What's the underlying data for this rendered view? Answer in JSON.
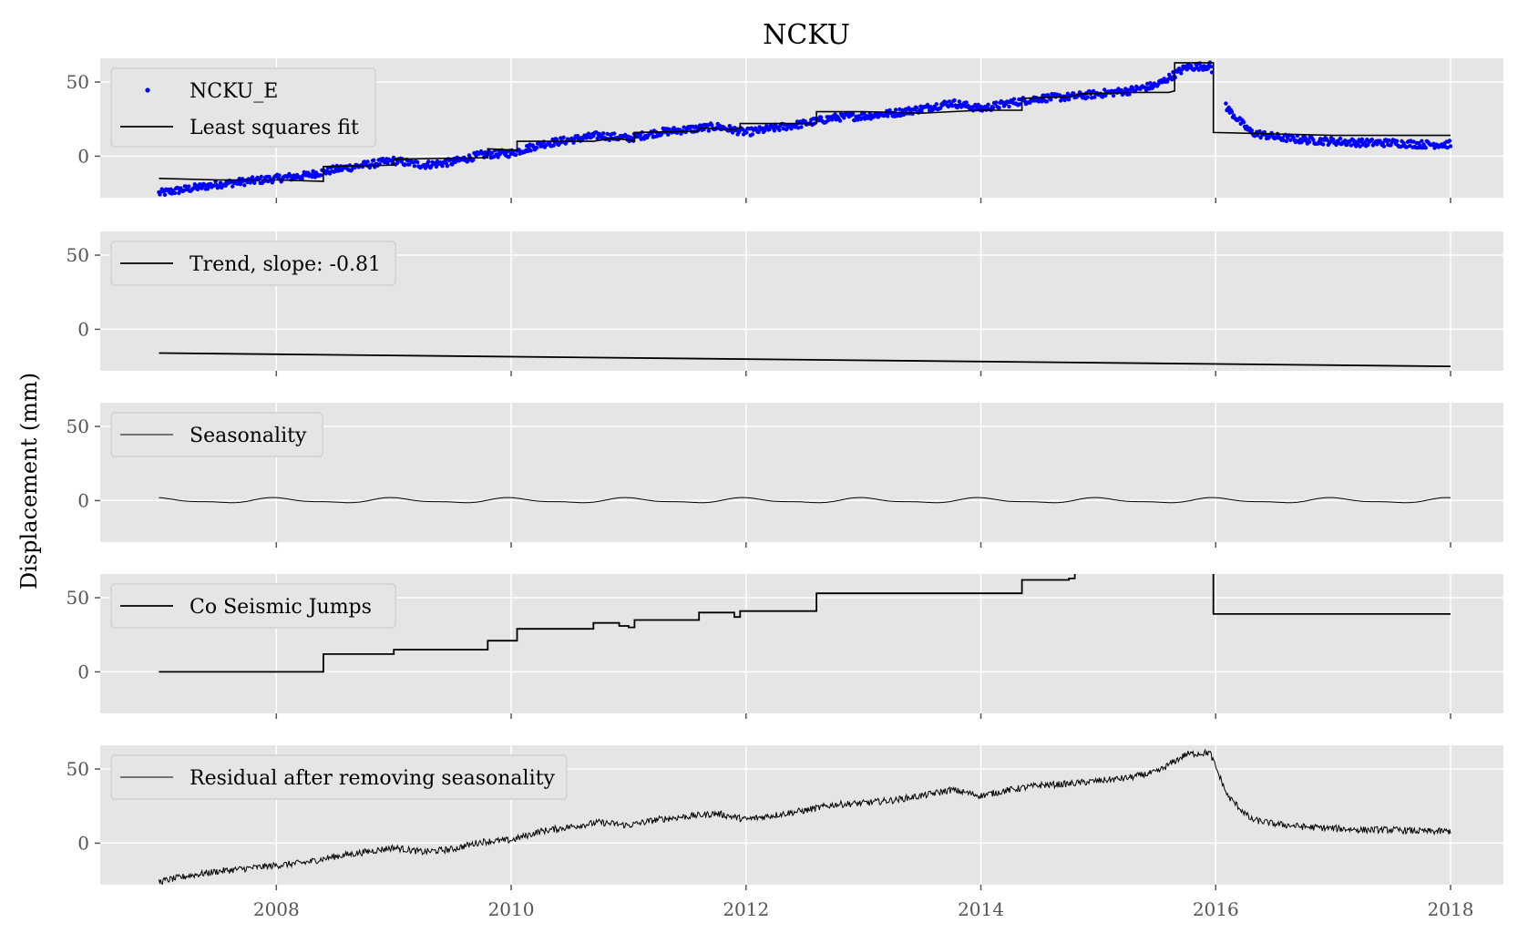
{
  "chart_data": {
    "title": "NCKU",
    "ylabel": "Displacement (mm)",
    "x_ticks": [
      "2008",
      "2010",
      "2012",
      "2014",
      "2016",
      "2018"
    ],
    "x_tick_values": [
      2008,
      2010,
      2012,
      2014,
      2016,
      2018
    ],
    "xlim": [
      2006.5,
      2018.45
    ],
    "grid": true,
    "legend_position": "top-left",
    "panels": [
      {
        "type": "scatter+line",
        "ylim": [
          -28,
          66
        ],
        "y_ticks": [
          0,
          50
        ],
        "legend": [
          "NCKU_E",
          "Least squares fit"
        ],
        "series": [
          {
            "name": "NCKU_E",
            "kind": "points",
            "color": "#0000ff",
            "x": [
              2007.0,
              2007.25,
              2007.5,
              2007.75,
              2008.0,
              2008.25,
              2008.5,
              2008.75,
              2009.0,
              2009.25,
              2009.5,
              2009.75,
              2010.0,
              2010.25,
              2010.5,
              2010.75,
              2011.0,
              2011.25,
              2011.5,
              2011.75,
              2012.0,
              2012.25,
              2012.5,
              2012.75,
              2013.0,
              2013.25,
              2013.5,
              2013.75,
              2014.0,
              2014.25,
              2014.5,
              2014.75,
              2015.0,
              2015.25,
              2015.5,
              2015.75,
              2015.95,
              2016.1,
              2016.3,
              2016.5,
              2016.75,
              2017.0,
              2017.25,
              2017.5,
              2017.75,
              2018.0
            ],
            "y": [
              -25,
              -22,
              -19,
              -17,
              -15,
              -13,
              -9,
              -6,
              -3,
              -6,
              -4,
              1,
              2,
              8,
              11,
              14,
              12,
              16,
              18,
              20,
              16,
              19,
              22,
              26,
              27,
              29,
              32,
              36,
              32,
              36,
              39,
              40,
              42,
              44,
              48,
              60,
              61,
              32,
              16,
              13,
              11,
              10,
              9,
              9,
              8,
              8
            ]
          },
          {
            "name": "Least squares fit",
            "kind": "line",
            "color": "#000000",
            "x": [
              2007.0,
              2007.5,
              2008.0,
              2008.4,
              2008.4,
              2009.0,
              2009.0,
              2009.8,
              2009.8,
              2010.05,
              2010.05,
              2010.7,
              2010.85,
              2011.0,
              2011.05,
              2011.05,
              2011.6,
              2011.6,
              2011.9,
              2011.95,
              2011.95,
              2012.6,
              2012.6,
              2013.0,
              2013.5,
              2014.0,
              2014.35,
              2014.35,
              2014.75,
              2014.85,
              2015.3,
              2015.6,
              2015.65,
              2015.65,
              2015.98,
              2015.98,
              2016.5,
              2017.0,
              2017.5,
              2018.0
            ],
            "y": [
              -15,
              -16,
              -16,
              -17,
              -7,
              -6,
              -2,
              -1,
              5,
              4,
              10,
              10,
              12,
              11,
              10,
              16,
              17,
              19,
              18,
              19,
              22,
              22,
              30,
              30,
              29,
              31,
              31,
              39,
              40,
              42,
              43,
              43,
              44,
              63,
              63,
              16,
              15,
              14,
              14,
              14
            ]
          }
        ]
      },
      {
        "type": "line",
        "ylim": [
          -28,
          66
        ],
        "y_ticks": [
          0,
          50
        ],
        "legend": [
          "Trend, slope: -0.81"
        ],
        "series": [
          {
            "name": "Trend, slope: -0.81",
            "x": [
              2007.0,
              2018.0
            ],
            "y": [
              -16,
              -25
            ],
            "color": "#000000"
          }
        ]
      },
      {
        "type": "line",
        "ylim": [
          -28,
          66
        ],
        "y_ticks": [
          0,
          50
        ],
        "legend": [
          "Seasonality"
        ],
        "series": [
          {
            "name": "Seasonality",
            "amplitude_mm": 1.5,
            "period_years": 1,
            "x_range": [
              2007.0,
              2018.0
            ],
            "color": "#000000"
          }
        ]
      },
      {
        "type": "step",
        "ylim": [
          -28,
          66
        ],
        "y_ticks": [
          0,
          50
        ],
        "legend": [
          "Co Seismic Jumps"
        ],
        "series": [
          {
            "name": "Co Seismic Jumps",
            "color": "#000000",
            "x": [
              2007.0,
              2008.4,
              2008.4,
              2009.0,
              2009.0,
              2009.8,
              2009.8,
              2010.05,
              2010.05,
              2010.7,
              2010.7,
              2010.92,
              2010.92,
              2011.0,
              2011.0,
              2011.05,
              2011.05,
              2011.6,
              2011.6,
              2011.9,
              2011.9,
              2011.95,
              2011.95,
              2012.6,
              2012.6,
              2014.35,
              2014.35,
              2014.75,
              2014.75,
              2014.8,
              2014.8
            ],
            "y": [
              0,
              0,
              12,
              12,
              15,
              15,
              21,
              21,
              29,
              29,
              33,
              33,
              31,
              31,
              30,
              30,
              35,
              35,
              40,
              40,
              37,
              37,
              41,
              41,
              53,
              53,
              62,
              62,
              63,
              63,
              66
            ],
            "x2": [
              2015.98,
              2015.98,
              2018.0
            ],
            "y2": [
              66,
              39,
              39
            ]
          }
        ]
      },
      {
        "type": "line",
        "ylim": [
          -28,
          66
        ],
        "y_ticks": [
          0,
          50
        ],
        "legend": [
          "Residual after removing seasonality"
        ],
        "series": [
          {
            "name": "Residual after removing seasonality",
            "color": "#000000",
            "x": [
              2007.0,
              2007.25,
              2007.5,
              2007.75,
              2008.0,
              2008.25,
              2008.5,
              2008.75,
              2009.0,
              2009.25,
              2009.5,
              2009.75,
              2010.0,
              2010.25,
              2010.5,
              2010.75,
              2011.0,
              2011.25,
              2011.5,
              2011.75,
              2012.0,
              2012.25,
              2012.5,
              2012.75,
              2013.0,
              2013.25,
              2013.5,
              2013.75,
              2014.0,
              2014.25,
              2014.5,
              2014.75,
              2015.0,
              2015.25,
              2015.5,
              2015.75,
              2015.95,
              2016.1,
              2016.3,
              2016.5,
              2016.75,
              2017.0,
              2017.25,
              2017.5,
              2017.75,
              2018.0
            ],
            "y": [
              -26,
              -22,
              -19,
              -17,
              -15,
              -13,
              -9,
              -6,
              -3,
              -6,
              -4,
              1,
              2,
              8,
              11,
              14,
              12,
              16,
              18,
              20,
              16,
              19,
              22,
              26,
              27,
              29,
              32,
              36,
              32,
              36,
              39,
              40,
              42,
              44,
              48,
              60,
              61,
              32,
              16,
              13,
              11,
              10,
              9,
              9,
              8,
              8
            ]
          }
        ]
      }
    ]
  }
}
